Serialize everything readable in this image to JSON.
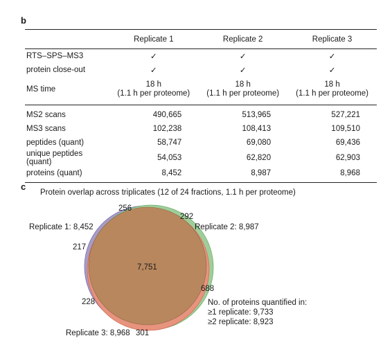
{
  "panel_b": {
    "label": "b",
    "columns": [
      "Replicate 1",
      "Replicate 2",
      "Replicate 3"
    ],
    "rows_top": [
      {
        "label": "RTS–SPS–MS3",
        "values": [
          "✓",
          "✓",
          "✓"
        ]
      },
      {
        "label": "protein close-out",
        "values": [
          "✓",
          "✓",
          "✓"
        ]
      }
    ],
    "ms_time": {
      "label": "MS time",
      "line1": "18 h",
      "line2": "(1.1 h per proteome)"
    },
    "rows_bottom": [
      {
        "label": "MS2 scans",
        "values": [
          "490,665",
          "513,965",
          "527,221"
        ]
      },
      {
        "label": "MS3 scans",
        "values": [
          "102,238",
          "108,413",
          "109,510"
        ]
      },
      {
        "label": "peptides (quant)",
        "values": [
          "58,747",
          "69,080",
          "69,436"
        ]
      },
      {
        "label": "unique peptides (quant)",
        "values": [
          "54,053",
          "62,820",
          "62,903"
        ]
      },
      {
        "label": "proteins (quant)",
        "values": [
          "8,452",
          "8,987",
          "8,968"
        ]
      }
    ]
  },
  "panel_c": {
    "label": "c",
    "title": "Protein overlap across triplicates (12 of 24 fractions, 1.1 h per proteome)",
    "sets": [
      {
        "name": "Replicate 1: 8,452",
        "color": "#a89cc8"
      },
      {
        "name": "Replicate 2: 8,987",
        "color": "#9fce9a"
      },
      {
        "name": "Replicate 3: 8,968",
        "color": "#e8937e"
      }
    ],
    "center_color": "#b8875e",
    "region_values": {
      "top_256": "256",
      "top_292": "292",
      "left_217": "217",
      "center": "7,751",
      "right_688": "688",
      "bottom_left_228": "228",
      "bottom_301": "301"
    },
    "legend": {
      "heading": "No. of proteins quantified in:",
      "line1": "≥1 replicate: 9,733",
      "line2": "≥2 replicate: 8,923"
    }
  }
}
